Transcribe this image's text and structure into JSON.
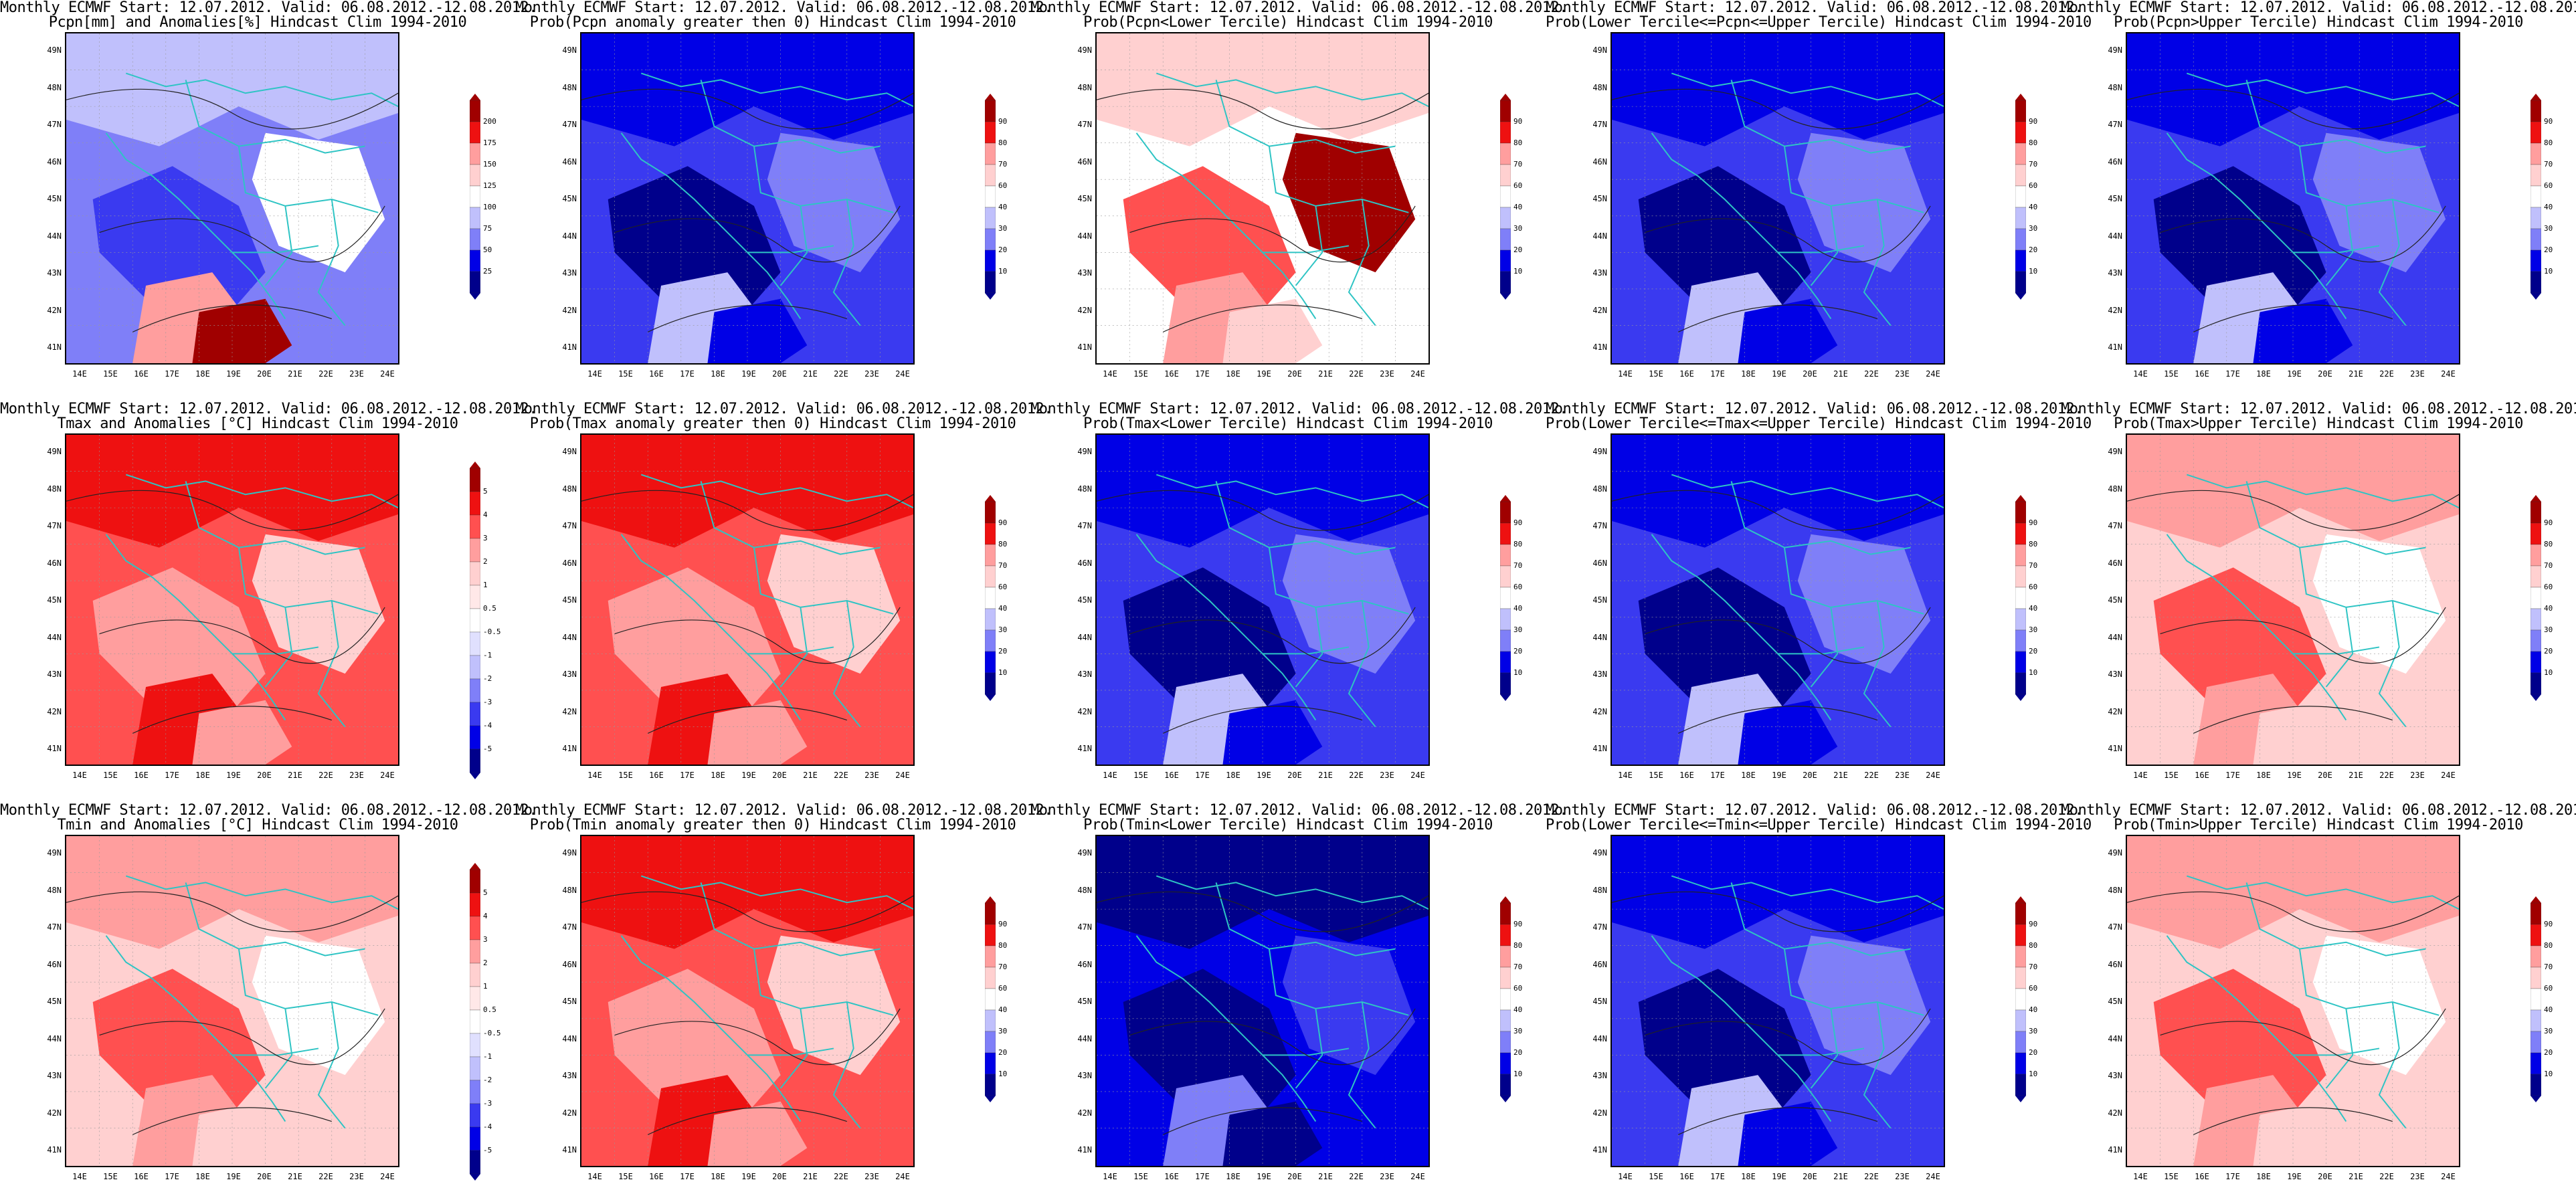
{
  "x_ticks": [
    "14E",
    "15E",
    "16E",
    "17E",
    "18E",
    "19E",
    "20E",
    "21E",
    "22E",
    "23E",
    "24E"
  ],
  "y_ticks": [
    "49N",
    "48N",
    "47N",
    "46N",
    "45N",
    "44N",
    "43N",
    "42N",
    "41N"
  ],
  "palette": {
    "dark_blue": "#00008b",
    "blue": "#0000e6",
    "mid_blue": "#3a3af0",
    "light_blue": "#7f7ff8",
    "pale_blue": "#c0c0fc",
    "white": "#ffffff",
    "pale_red": "#ffd0d0",
    "light_red": "#ff9e9e",
    "mid_red": "#ff5050",
    "red": "#ee1111",
    "dark_red": "#a00000",
    "coast": "#2ec4c4"
  },
  "panels": [
    {
      "row": 0,
      "col": 0,
      "line1": "Monthly ECMWF Start: 12.07.2012. Valid: 06.08.2012.-12.08.2012.",
      "line2": "Pcpn[mm] and Anomalies[%] Hindcast Clim 1994-2010",
      "cbar": [
        "200",
        "175",
        "150",
        "125",
        "100",
        "75",
        "50",
        "25"
      ],
      "scheme": "precip"
    },
    {
      "row": 0,
      "col": 1,
      "line1": "Monthly ECMWF Start: 12.07.2012. Valid: 06.08.2012.-12.08.2012.",
      "line2": "Prob(Pcpn anomaly greater then 0) Hindcast Clim 1994-2010",
      "cbar": [
        "90",
        "80",
        "70",
        "60",
        "40",
        "30",
        "20",
        "10"
      ],
      "scheme": "blue"
    },
    {
      "row": 0,
      "col": 2,
      "line1": "Monthly ECMWF Start: 12.07.2012. Valid: 06.08.2012.-12.08.2012.",
      "line2": "Prob(Pcpn<Lower Tercile) Hindcast Clim 1994-2010",
      "cbar": [
        "90",
        "80",
        "70",
        "60",
        "40",
        "30",
        "20",
        "10"
      ],
      "scheme": "redwhite"
    },
    {
      "row": 0,
      "col": 3,
      "line1": "Monthly ECMWF Start: 12.07.2012. Valid: 06.08.2012.-12.08.2012.",
      "line2": "Prob(Lower Tercile<=Pcpn<=Upper Tercile) Hindcast Clim 1994-2010",
      "cbar": [
        "90",
        "80",
        "70",
        "60",
        "40",
        "30",
        "20",
        "10"
      ],
      "scheme": "blue"
    },
    {
      "row": 0,
      "col": 4,
      "line1": "Monthly ECMWF Start: 12.07.2012. Valid: 06.08.2012.-12.08.2012.",
      "line2": "Prob(Pcpn>Upper Tercile) Hindcast Clim 1994-2010",
      "cbar": [
        "90",
        "80",
        "70",
        "60",
        "40",
        "30",
        "20",
        "10"
      ],
      "scheme": "blue"
    },
    {
      "row": 1,
      "col": 0,
      "line1": "Monthly ECMWF Start: 12.07.2012. Valid: 06.08.2012.-12.08.2012.",
      "line2": "Tmax and Anomalies [°C] Hindcast Clim 1994-2010",
      "cbar": [
        "5",
        "4",
        "3",
        "2",
        "1",
        "0.5",
        "-0.5",
        "-1",
        "-2",
        "-3",
        "-4",
        "-5"
      ],
      "scheme": "red"
    },
    {
      "row": 1,
      "col": 1,
      "line1": "Monthly ECMWF Start: 12.07.2012. Valid: 06.08.2012.-12.08.2012.",
      "line2": "Prob(Tmax anomaly greater then 0) Hindcast Clim 1994-2010",
      "cbar": [
        "90",
        "80",
        "70",
        "60",
        "40",
        "30",
        "20",
        "10"
      ],
      "scheme": "red"
    },
    {
      "row": 1,
      "col": 2,
      "line1": "Monthly ECMWF Start: 12.07.2012. Valid: 06.08.2012.-12.08.2012.",
      "line2": "Prob(Tmax<Lower Tercile) Hindcast Clim 1994-2010",
      "cbar": [
        "90",
        "80",
        "70",
        "60",
        "40",
        "30",
        "20",
        "10"
      ],
      "scheme": "blue"
    },
    {
      "row": 1,
      "col": 3,
      "line1": "Monthly ECMWF Start: 12.07.2012. Valid: 06.08.2012.-12.08.2012.",
      "line2": "Prob(Lower Tercile<=Tmax<=Upper Tercile) Hindcast Clim 1994-2010",
      "cbar": [
        "90",
        "80",
        "70",
        "60",
        "40",
        "30",
        "20",
        "10"
      ],
      "scheme": "blue"
    },
    {
      "row": 1,
      "col": 4,
      "line1": "Monthly ECMWF Start: 12.07.2012. Valid: 06.08.2012.-12.08.2012.",
      "line2": "Prob(Tmax>Upper Tercile) Hindcast Clim 1994-2010",
      "cbar": [
        "90",
        "80",
        "70",
        "60",
        "40",
        "30",
        "20",
        "10"
      ],
      "scheme": "lightred"
    },
    {
      "row": 2,
      "col": 0,
      "line1": "Monthly ECMWF Start: 12.07.2012. Valid: 06.08.2012.-12.08.2012.",
      "line2": "Tmin and Anomalies [°C] Hindcast Clim 1994-2010",
      "cbar": [
        "5",
        "4",
        "3",
        "2",
        "1",
        "0.5",
        "-0.5",
        "-1",
        "-2",
        "-3",
        "-4",
        "-5"
      ],
      "scheme": "lightred"
    },
    {
      "row": 2,
      "col": 1,
      "line1": "Monthly ECMWF Start: 12.07.2012. Valid: 06.08.2012.-12.08.2012.",
      "line2": "Prob(Tmin anomaly greater then 0) Hindcast Clim 1994-2010",
      "cbar": [
        "90",
        "80",
        "70",
        "60",
        "40",
        "30",
        "20",
        "10"
      ],
      "scheme": "red"
    },
    {
      "row": 2,
      "col": 2,
      "line1": "Monthly ECMWF Start: 12.07.2012. Valid: 06.08.2012.-12.08.2012.",
      "line2": "Prob(Tmin<Lower Tercile) Hindcast Clim 1994-2010",
      "cbar": [
        "90",
        "80",
        "70",
        "60",
        "40",
        "30",
        "20",
        "10"
      ],
      "scheme": "darkblue"
    },
    {
      "row": 2,
      "col": 3,
      "line1": "Monthly ECMWF Start: 12.07.2012. Valid: 06.08.2012.-12.08.2012.",
      "line2": "Prob(Lower Tercile<=Tmin<=Upper Tercile) Hindcast Clim 1994-2010",
      "cbar": [
        "90",
        "80",
        "70",
        "60",
        "40",
        "30",
        "20",
        "10"
      ],
      "scheme": "blue"
    },
    {
      "row": 2,
      "col": 4,
      "line1": "Monthly ECMWF Start: 12.07.2012. Valid: 06.08.2012.-12.08.2012.",
      "line2": "Prob(Tmin>Upper Tercile) Hindcast Clim 1994-2010",
      "cbar": [
        "90",
        "80",
        "70",
        "60",
        "40",
        "30",
        "20",
        "10"
      ],
      "scheme": "lightred"
    }
  ],
  "chart_data": [
    {
      "type": "heatmap",
      "title": "Pcpn[mm] and Anomalies[%]",
      "x": [
        "14E",
        "24E"
      ],
      "y": [
        "41N",
        "49N"
      ],
      "colorbar": [
        25,
        50,
        75,
        100,
        125,
        150,
        175,
        200
      ]
    },
    {
      "type": "heatmap",
      "title": "Prob(Pcpn anomaly greater then 0)",
      "colorbar": [
        10,
        20,
        30,
        40,
        60,
        70,
        80,
        90
      ]
    },
    {
      "type": "heatmap",
      "title": "Prob(Pcpn<Lower Tercile)",
      "colorbar": [
        10,
        20,
        30,
        40,
        60,
        70,
        80,
        90
      ]
    },
    {
      "type": "heatmap",
      "title": "Prob(Lower Tercile<=Pcpn<=Upper Tercile)",
      "colorbar": [
        10,
        20,
        30,
        40,
        60,
        70,
        80,
        90
      ]
    },
    {
      "type": "heatmap",
      "title": "Prob(Pcpn>Upper Tercile)",
      "colorbar": [
        10,
        20,
        30,
        40,
        60,
        70,
        80,
        90
      ]
    },
    {
      "type": "heatmap",
      "title": "Tmax and Anomalies [°C]",
      "colorbar": [
        -5,
        -4,
        -3,
        -2,
        -1,
        -0.5,
        0.5,
        1,
        2,
        3,
        4,
        5
      ]
    },
    {
      "type": "heatmap",
      "title": "Prob(Tmax anomaly greater then 0)",
      "colorbar": [
        10,
        20,
        30,
        40,
        60,
        70,
        80,
        90
      ]
    },
    {
      "type": "heatmap",
      "title": "Prob(Tmax<Lower Tercile)",
      "colorbar": [
        10,
        20,
        30,
        40,
        60,
        70,
        80,
        90
      ]
    },
    {
      "type": "heatmap",
      "title": "Prob(Lower Tercile<=Tmax<=Upper Tercile)",
      "colorbar": [
        10,
        20,
        30,
        40,
        60,
        70,
        80,
        90
      ]
    },
    {
      "type": "heatmap",
      "title": "Prob(Tmax>Upper Tercile)",
      "colorbar": [
        10,
        20,
        30,
        40,
        60,
        70,
        80,
        90
      ]
    },
    {
      "type": "heatmap",
      "title": "Tmin and Anomalies [°C]",
      "colorbar": [
        -5,
        -4,
        -3,
        -2,
        -1,
        -0.5,
        0.5,
        1,
        2,
        3,
        4,
        5
      ]
    },
    {
      "type": "heatmap",
      "title": "Prob(Tmin anomaly greater then 0)",
      "colorbar": [
        10,
        20,
        30,
        40,
        60,
        70,
        80,
        90
      ]
    },
    {
      "type": "heatmap",
      "title": "Prob(Tmin<Lower Tercile)",
      "colorbar": [
        10,
        20,
        30,
        40,
        60,
        70,
        80,
        90
      ]
    },
    {
      "type": "heatmap",
      "title": "Prob(Lower Tercile<=Tmin<=Upper Tercile)",
      "colorbar": [
        10,
        20,
        30,
        40,
        60,
        70,
        80,
        90
      ]
    },
    {
      "type": "heatmap",
      "title": "Prob(Tmin>Upper Tercile)",
      "colorbar": [
        10,
        20,
        30,
        40,
        60,
        70,
        80,
        90
      ]
    }
  ]
}
